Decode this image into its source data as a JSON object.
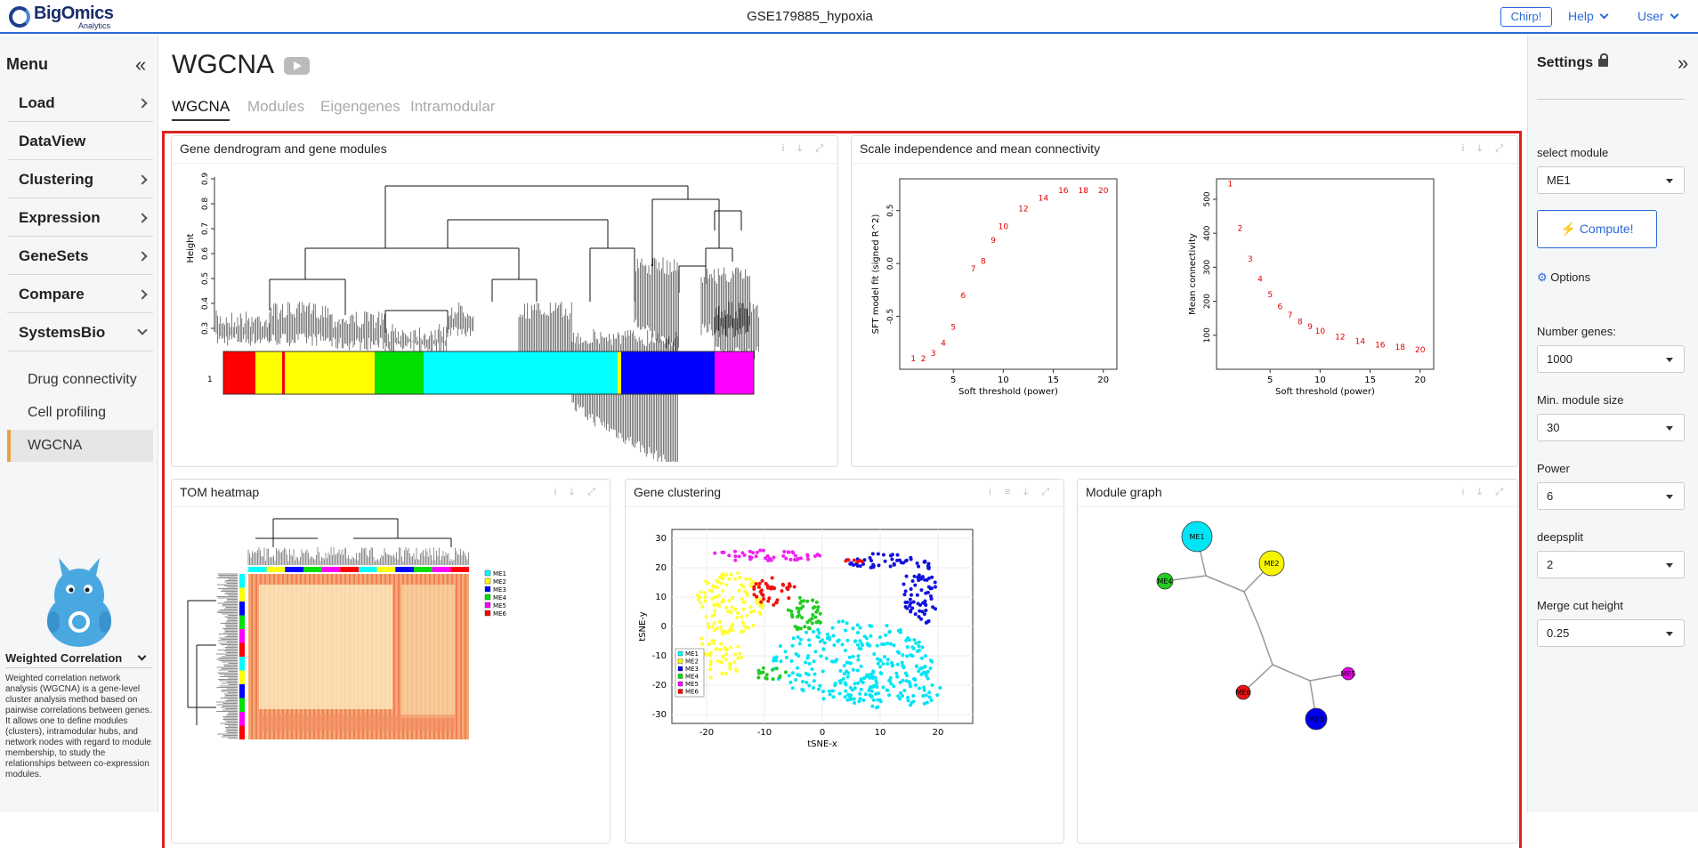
{
  "header": {
    "logo_main": "BigOmics",
    "logo_sub": "Analytics",
    "project": "GSE179885_hypoxia",
    "chirp": "Chirp!",
    "help": "Help",
    "user": "User"
  },
  "sidebar": {
    "title": "Menu",
    "items": [
      {
        "label": "Load"
      },
      {
        "label": "DataView"
      },
      {
        "label": "Clustering"
      },
      {
        "label": "Expression"
      },
      {
        "label": "GeneSets"
      },
      {
        "label": "Compare"
      },
      {
        "label": "SystemsBio"
      }
    ],
    "subitems": [
      {
        "label": "Drug connectivity"
      },
      {
        "label": "Cell profiling"
      },
      {
        "label": "WGCNA"
      }
    ],
    "info_title": "Weighted Correlation",
    "info_text": "Weighted correlation network analysis (WGCNA) is a gene-level cluster analysis method based on pairwise correlations between genes. It allows one to define modules (clusters), intramodular hubs, and network nodes with regard to module membership, to study the relationships between co-expression modules."
  },
  "main": {
    "title": "WGCNA",
    "tabs": [
      {
        "label": "WGCNA"
      },
      {
        "label": "Modules"
      },
      {
        "label": "Eigengenes"
      },
      {
        "label": "Intramodular"
      }
    ],
    "cards": {
      "dendro": "Gene dendrogram and gene modules",
      "scale": "Scale independence and mean connectivity",
      "tom": "TOM heatmap",
      "clust": "Gene clustering",
      "graph": "Module graph"
    }
  },
  "plots": {
    "dendro": {
      "ylabel": "Height",
      "yticks": [
        "0.9",
        "0.8",
        "0.7",
        "0.6",
        "0.5",
        "0.4",
        "0.3"
      ],
      "bar_label": "1",
      "colors": [
        {
          "c": "#ff0000",
          "w": 36
        },
        {
          "c": "#ffff00",
          "w": 30
        },
        {
          "c": "#ff0000",
          "w": 3
        },
        {
          "c": "#ffff00",
          "w": 101
        },
        {
          "c": "#00e000",
          "w": 55
        },
        {
          "c": "#00ffff",
          "w": 218
        },
        {
          "c": "#ffff00",
          "w": 4
        },
        {
          "c": "#0000ff",
          "w": 105
        },
        {
          "c": "#ff00ff",
          "w": 44
        }
      ]
    },
    "sft": {
      "xlabel": "Soft threshold (power)",
      "ylabel": "SFT model fit (signed R^2)",
      "xticks": [
        "5",
        "10",
        "15",
        "20"
      ],
      "yticks": [
        "0.5",
        "0.0",
        "-0.5"
      ],
      "ylim": [
        -1.0,
        0.8
      ],
      "points": [
        [
          1,
          -0.9
        ],
        [
          2,
          -0.9
        ],
        [
          3,
          -0.85
        ],
        [
          4,
          -0.75
        ],
        [
          5,
          -0.6
        ],
        [
          6,
          -0.3
        ],
        [
          7,
          -0.05
        ],
        [
          8,
          0.02
        ],
        [
          9,
          0.22
        ],
        [
          10,
          0.35
        ],
        [
          12,
          0.52
        ],
        [
          14,
          0.62
        ],
        [
          16,
          0.69
        ],
        [
          18,
          0.69
        ],
        [
          20,
          0.69
        ]
      ]
    },
    "conn": {
      "xlabel": "Soft threshold (power)",
      "ylabel": "Mean connectivity",
      "xticks": [
        "5",
        "10",
        "15",
        "20"
      ],
      "yticks": [
        "500",
        "400",
        "300",
        "200",
        "100"
      ],
      "ylim": [
        0,
        560
      ],
      "points": [
        [
          1,
          545
        ],
        [
          2,
          415
        ],
        [
          3,
          325
        ],
        [
          4,
          265
        ],
        [
          5,
          220
        ],
        [
          6,
          185
        ],
        [
          7,
          160
        ],
        [
          8,
          140
        ],
        [
          9,
          125
        ],
        [
          10,
          112
        ],
        [
          12,
          95
        ],
        [
          14,
          82
        ],
        [
          16,
          72
        ],
        [
          18,
          65
        ],
        [
          20,
          58
        ]
      ]
    },
    "tom": {
      "legend": [
        "ME1",
        "ME2",
        "ME3",
        "ME4",
        "ME5",
        "ME6"
      ],
      "legend_colors": [
        "#00ffff",
        "#ffff00",
        "#0000ff",
        "#00e000",
        "#ff00ff",
        "#ff0000"
      ]
    },
    "tsne": {
      "xlabel": "tSNE-x",
      "ylabel": "tSNE-y",
      "xticks": [
        "-20",
        "-10",
        "0",
        "10",
        "20"
      ],
      "yticks": [
        "30",
        "20",
        "10",
        "0",
        "-10",
        "-20",
        "-30"
      ],
      "legend": [
        "ME1",
        "ME2",
        "ME3",
        "ME4",
        "ME5",
        "ME6"
      ],
      "legend_colors": [
        "#00ffff",
        "#ffff00",
        "#0000ff",
        "#00e000",
        "#ff00ff",
        "#ff0000"
      ]
    },
    "graph": {
      "nodes": [
        {
          "label": "ME1",
          "color": "#00e5f5"
        },
        {
          "label": "ME2",
          "color": "#f5f500"
        },
        {
          "label": "ME4",
          "color": "#22cc22"
        },
        {
          "label": "ME5",
          "color": "#ee00ee"
        },
        {
          "label": "ME6",
          "color": "#ee1111"
        },
        {
          "label": "ME3",
          "color": "#0000ee"
        }
      ]
    }
  },
  "settings": {
    "title": "Settings",
    "module_label": "select module",
    "module_value": "ME1",
    "compute": "Compute!",
    "options": "Options",
    "fields": [
      {
        "label": "Number genes:",
        "value": "1000"
      },
      {
        "label": "Min. module size",
        "value": "30"
      },
      {
        "label": "Power",
        "value": "6"
      },
      {
        "label": "deepsplit",
        "value": "2"
      },
      {
        "label": "Merge cut height",
        "value": "0.25"
      }
    ]
  }
}
